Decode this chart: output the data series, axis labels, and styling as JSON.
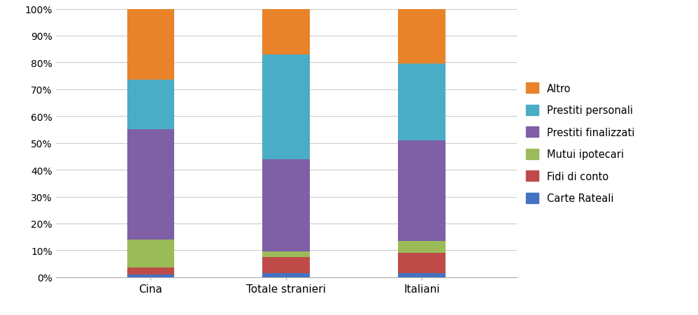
{
  "categories": [
    "Cina",
    "Totale stranieri",
    "Italiani"
  ],
  "series": [
    {
      "label": "Carte Rateali",
      "color": "#4472C4",
      "values": [
        1.0,
        1.5,
        1.5
      ]
    },
    {
      "label": "Fidi di conto",
      "color": "#BE4B48",
      "values": [
        2.5,
        6.0,
        7.5
      ]
    },
    {
      "label": "Mutui ipotecari",
      "color": "#9BBB59",
      "values": [
        10.5,
        2.0,
        4.5
      ]
    },
    {
      "label": "Prestiti finalizzati",
      "color": "#7F5FA6",
      "values": [
        41.0,
        34.5,
        37.5
      ]
    },
    {
      "label": "Prestiti personali",
      "color": "#4BACC6",
      "values": [
        18.5,
        39.0,
        28.5
      ]
    },
    {
      "label": "Altro",
      "color": "#E8832A",
      "values": [
        26.5,
        17.0,
        20.5
      ]
    }
  ],
  "ylim": [
    0,
    100
  ],
  "yticks": [
    0,
    10,
    20,
    30,
    40,
    50,
    60,
    70,
    80,
    90,
    100
  ],
  "ytick_labels": [
    "0%",
    "10%",
    "20%",
    "30%",
    "40%",
    "50%",
    "60%",
    "70%",
    "80%",
    "90%",
    "100%"
  ],
  "background_color": "#FFFFFF",
  "grid_color": "#CCCCCC",
  "bar_width": 0.35,
  "legend_fontsize": 10.5,
  "tick_fontsize": 10,
  "label_fontsize": 11
}
